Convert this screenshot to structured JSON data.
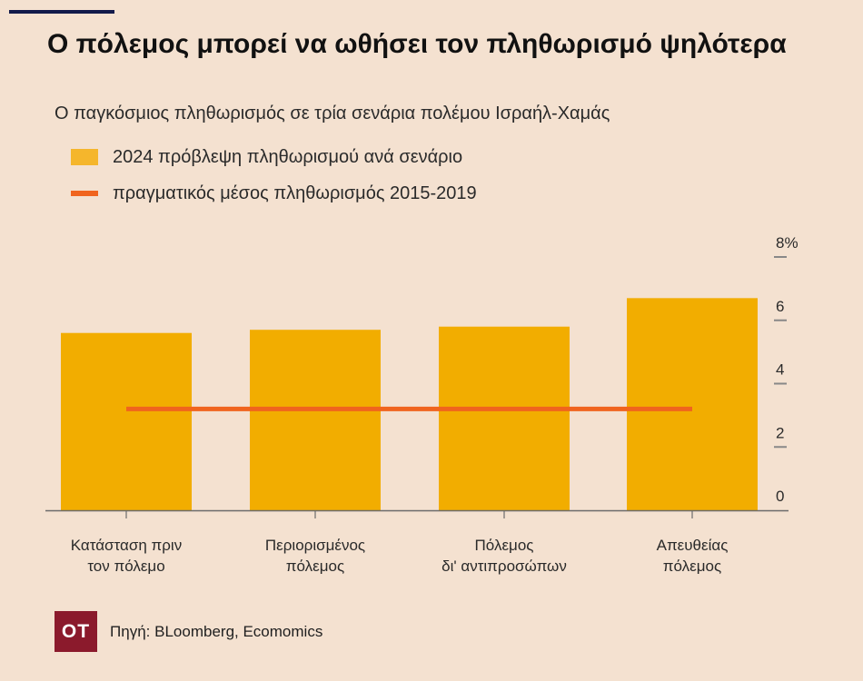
{
  "header": {
    "title": "Ο πόλεμος μπορεί να ωθήσει τον πληθωρισμό ψηλότερα",
    "subtitle": "Ο παγκόσμιος πληθωρισμός σε τρία σενάρια πολέμου Ισραήλ-Χαμάς"
  },
  "legend": {
    "bars_label": "2024 πρόβλεψη πληθωρισμού ανά σενάριο",
    "line_label": "πραγματικός μέσος πληθωρισμός 2015-2019"
  },
  "chart_data": {
    "type": "bar",
    "categories": [
      [
        "Κατάσταση πριν",
        "τον πόλεμο"
      ],
      [
        "Περιορισμένος",
        "πόλεμος"
      ],
      [
        "Πόλεμος",
        "δι' αντιπροσώπων"
      ],
      [
        "Απευθείας",
        "πόλεμος"
      ]
    ],
    "series": [
      {
        "name": "2024 πρόβλεψη πληθωρισμού ανά σενάριο",
        "values": [
          5.6,
          5.7,
          5.8,
          6.7
        ]
      }
    ],
    "reference_line": {
      "name": "πραγματικός μέσος πληθωρισμός 2015-2019",
      "value": 3.2
    },
    "y_ticks": [
      "0",
      "2",
      "4",
      "6",
      "8%"
    ],
    "ylim": [
      0,
      8
    ],
    "y_axis_side": "right",
    "grid": false,
    "legend_position": "top-left",
    "colors": {
      "bar": "#f2ad00",
      "line": "#f0641e",
      "axis": "#6b6b6b"
    }
  },
  "footer": {
    "logo_text": "ΟΤ",
    "source": "Πηγή: BLoomberg, Ecomomics"
  }
}
